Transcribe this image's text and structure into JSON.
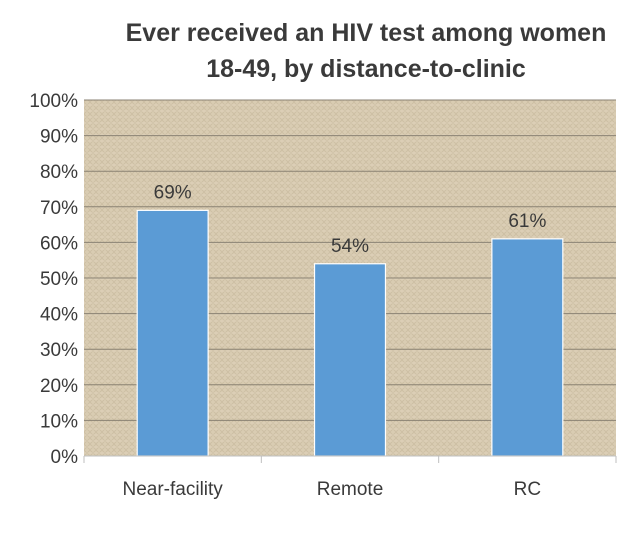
{
  "chart_data": {
    "type": "bar",
    "title_lines": [
      "Ever received an HIV test among women",
      "18-49, by distance-to-clinic"
    ],
    "categories": [
      "Near-facility",
      "Remote",
      "RC"
    ],
    "values": [
      69,
      54,
      61
    ],
    "data_labels": [
      "69%",
      "54%",
      "61%"
    ],
    "ylim": [
      0,
      100
    ],
    "y_ticks": [
      0,
      10,
      20,
      30,
      40,
      50,
      60,
      70,
      80,
      90,
      100
    ],
    "y_tick_labels": [
      "0%",
      "10%",
      "20%",
      "30%",
      "40%",
      "50%",
      "60%",
      "70%",
      "80%",
      "90%",
      "100%"
    ],
    "grid": true,
    "legend": "none",
    "colors": {
      "bar_fill": "#5b9bd5",
      "bar_edge": "#ffffff",
      "plot_background": "#d7cbb3",
      "gridline": "#8a8273",
      "text": "#3a3a3a"
    }
  }
}
